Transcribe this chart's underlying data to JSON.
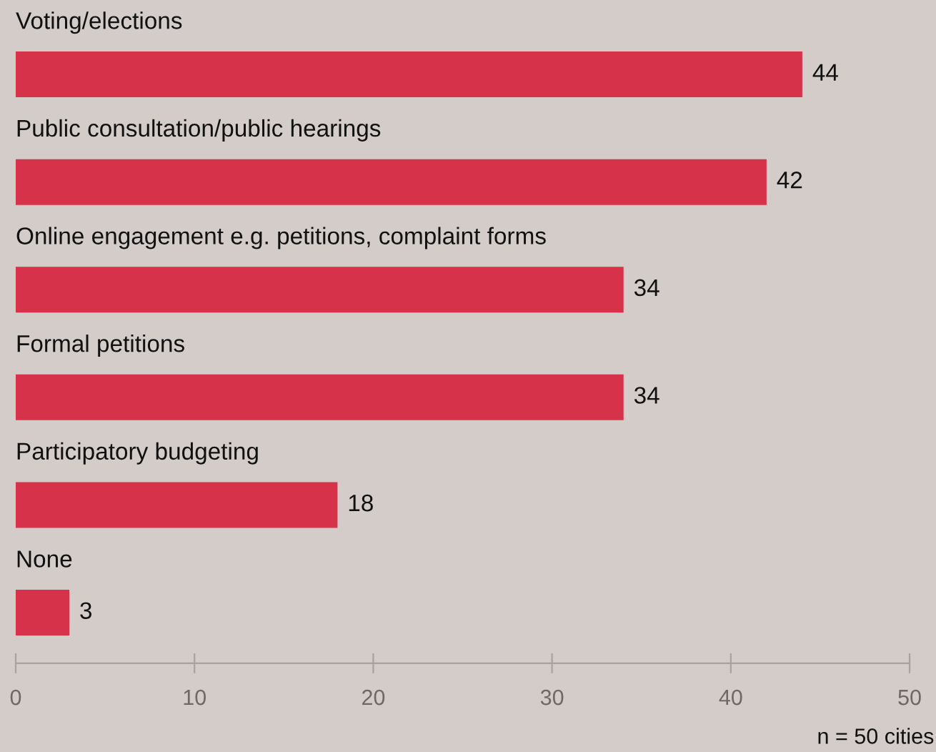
{
  "chart_data": {
    "type": "bar",
    "orientation": "horizontal",
    "categories": [
      "Voting/elections",
      "Public consultation/public hearings",
      "Online engagement e.g. petitions, complaint forms",
      "Formal petitions",
      "Participatory budgeting",
      "None"
    ],
    "values": [
      44,
      42,
      34,
      34,
      18,
      3
    ],
    "color": "#d6334a",
    "xlim": [
      0,
      50
    ],
    "xticks": [
      0,
      10,
      20,
      30,
      40,
      50
    ],
    "data_labels": true,
    "grid": false,
    "legend": false,
    "annotations": [
      "n = 50 cities"
    ]
  }
}
